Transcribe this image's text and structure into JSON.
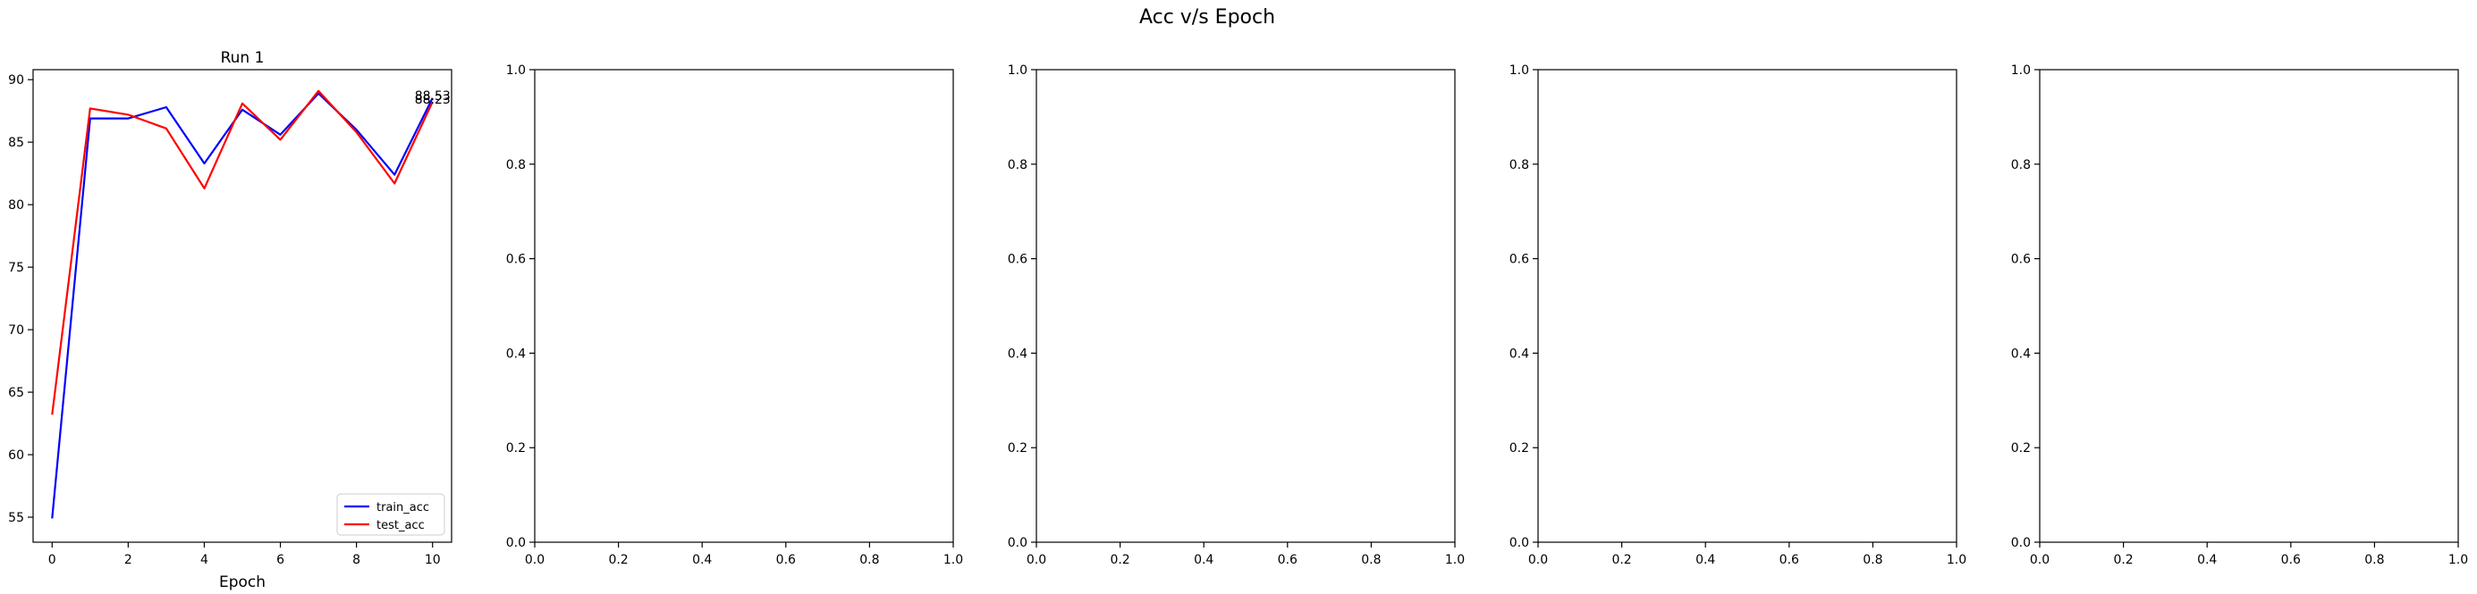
{
  "figure": {
    "suptitle": "Acc v/s Epoch"
  },
  "colors": {
    "train": "#0000ff",
    "test": "#ff0000",
    "axes": "#000000",
    "background": "#ffffff"
  },
  "chart_data": [
    {
      "type": "line",
      "title": "Run 1",
      "xlabel": "Epoch",
      "ylabel": "",
      "x": [
        0,
        1,
        2,
        3,
        4,
        5,
        6,
        7,
        8,
        9,
        10
      ],
      "xlim": [
        -0.5,
        10.5
      ],
      "ylim": [
        53.0,
        90.8
      ],
      "xticks": [
        0,
        2,
        4,
        6,
        8,
        10
      ],
      "yticks": [
        55,
        60,
        65,
        70,
        75,
        80,
        85,
        90
      ],
      "series": [
        {
          "name": "train_acc",
          "color": "#0000ff",
          "values": [
            54.9,
            86.9,
            86.9,
            87.8,
            83.3,
            87.6,
            85.6,
            88.9,
            86.0,
            82.4,
            88.53
          ]
        },
        {
          "name": "test_acc",
          "color": "#ff0000",
          "values": [
            63.2,
            87.7,
            87.2,
            86.1,
            81.3,
            88.1,
            85.2,
            89.1,
            85.8,
            81.7,
            88.23
          ]
        }
      ],
      "annotations": [
        "88.53",
        "88.23"
      ],
      "legend": {
        "placement": "lower-right",
        "entries": [
          "train_acc",
          "test_acc"
        ]
      },
      "grid": false
    },
    {
      "type": "line",
      "title": "",
      "xlim": [
        0,
        1
      ],
      "ylim": [
        0,
        1
      ],
      "xticks": [
        0.0,
        0.2,
        0.4,
        0.6,
        0.8,
        1.0
      ],
      "yticks": [
        0.0,
        0.2,
        0.4,
        0.6,
        0.8,
        1.0
      ],
      "series": [],
      "grid": false
    },
    {
      "type": "line",
      "title": "",
      "xlim": [
        0,
        1
      ],
      "ylim": [
        0,
        1
      ],
      "xticks": [
        0.0,
        0.2,
        0.4,
        0.6,
        0.8,
        1.0
      ],
      "yticks": [
        0.0,
        0.2,
        0.4,
        0.6,
        0.8,
        1.0
      ],
      "series": [],
      "grid": false
    },
    {
      "type": "line",
      "title": "",
      "xlim": [
        0,
        1
      ],
      "ylim": [
        0,
        1
      ],
      "xticks": [
        0.0,
        0.2,
        0.4,
        0.6,
        0.8,
        1.0
      ],
      "yticks": [
        0.0,
        0.2,
        0.4,
        0.6,
        0.8,
        1.0
      ],
      "series": [],
      "grid": false
    },
    {
      "type": "line",
      "title": "",
      "xlim": [
        0,
        1
      ],
      "ylim": [
        0,
        1
      ],
      "xticks": [
        0.0,
        0.2,
        0.4,
        0.6,
        0.8,
        1.0
      ],
      "yticks": [
        0.0,
        0.2,
        0.4,
        0.6,
        0.8,
        1.0
      ],
      "series": [],
      "grid": false
    }
  ]
}
